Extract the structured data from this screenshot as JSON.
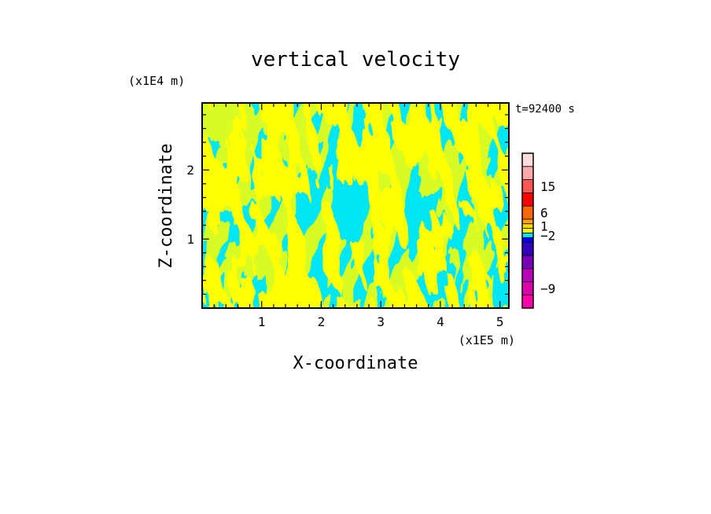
{
  "chart_data": {
    "type": "heatmap",
    "title": "vertical velocity",
    "time_label": "t=92400 s",
    "xlabel": "X-coordinate",
    "ylabel": "Z-coordinate",
    "x_unit": "(x1E5 m)",
    "y_unit": "(x1E4 m)",
    "xlim": [
      0,
      5.15
    ],
    "ylim": [
      0,
      2.97
    ],
    "x_ticks": [
      1,
      2,
      3,
      4,
      5
    ],
    "y_ticks": [
      1,
      2
    ],
    "field_colors": {
      "negative": "#00e6f5",
      "positive": "#ffff00"
    },
    "colorbar": {
      "tick_labels": [
        {
          "label": "15",
          "value": 15
        },
        {
          "label": "6",
          "value": 6
        },
        {
          "label": "1",
          "value": 1
        },
        {
          "label": "−2",
          "value": -2
        },
        {
          "label": "−9",
          "value": -9
        }
      ],
      "bands": [
        "#ff00aa",
        "#dd00aa",
        "#bb00bb",
        "#7700bb",
        "#3300bb",
        "#0000ff",
        "#00e6f5",
        "#ffff00",
        "#ffd700",
        "#ffa500",
        "#ff6600",
        "#ff0000",
        "#ff5555",
        "#ffaaaa",
        "#ffdddd"
      ]
    }
  }
}
